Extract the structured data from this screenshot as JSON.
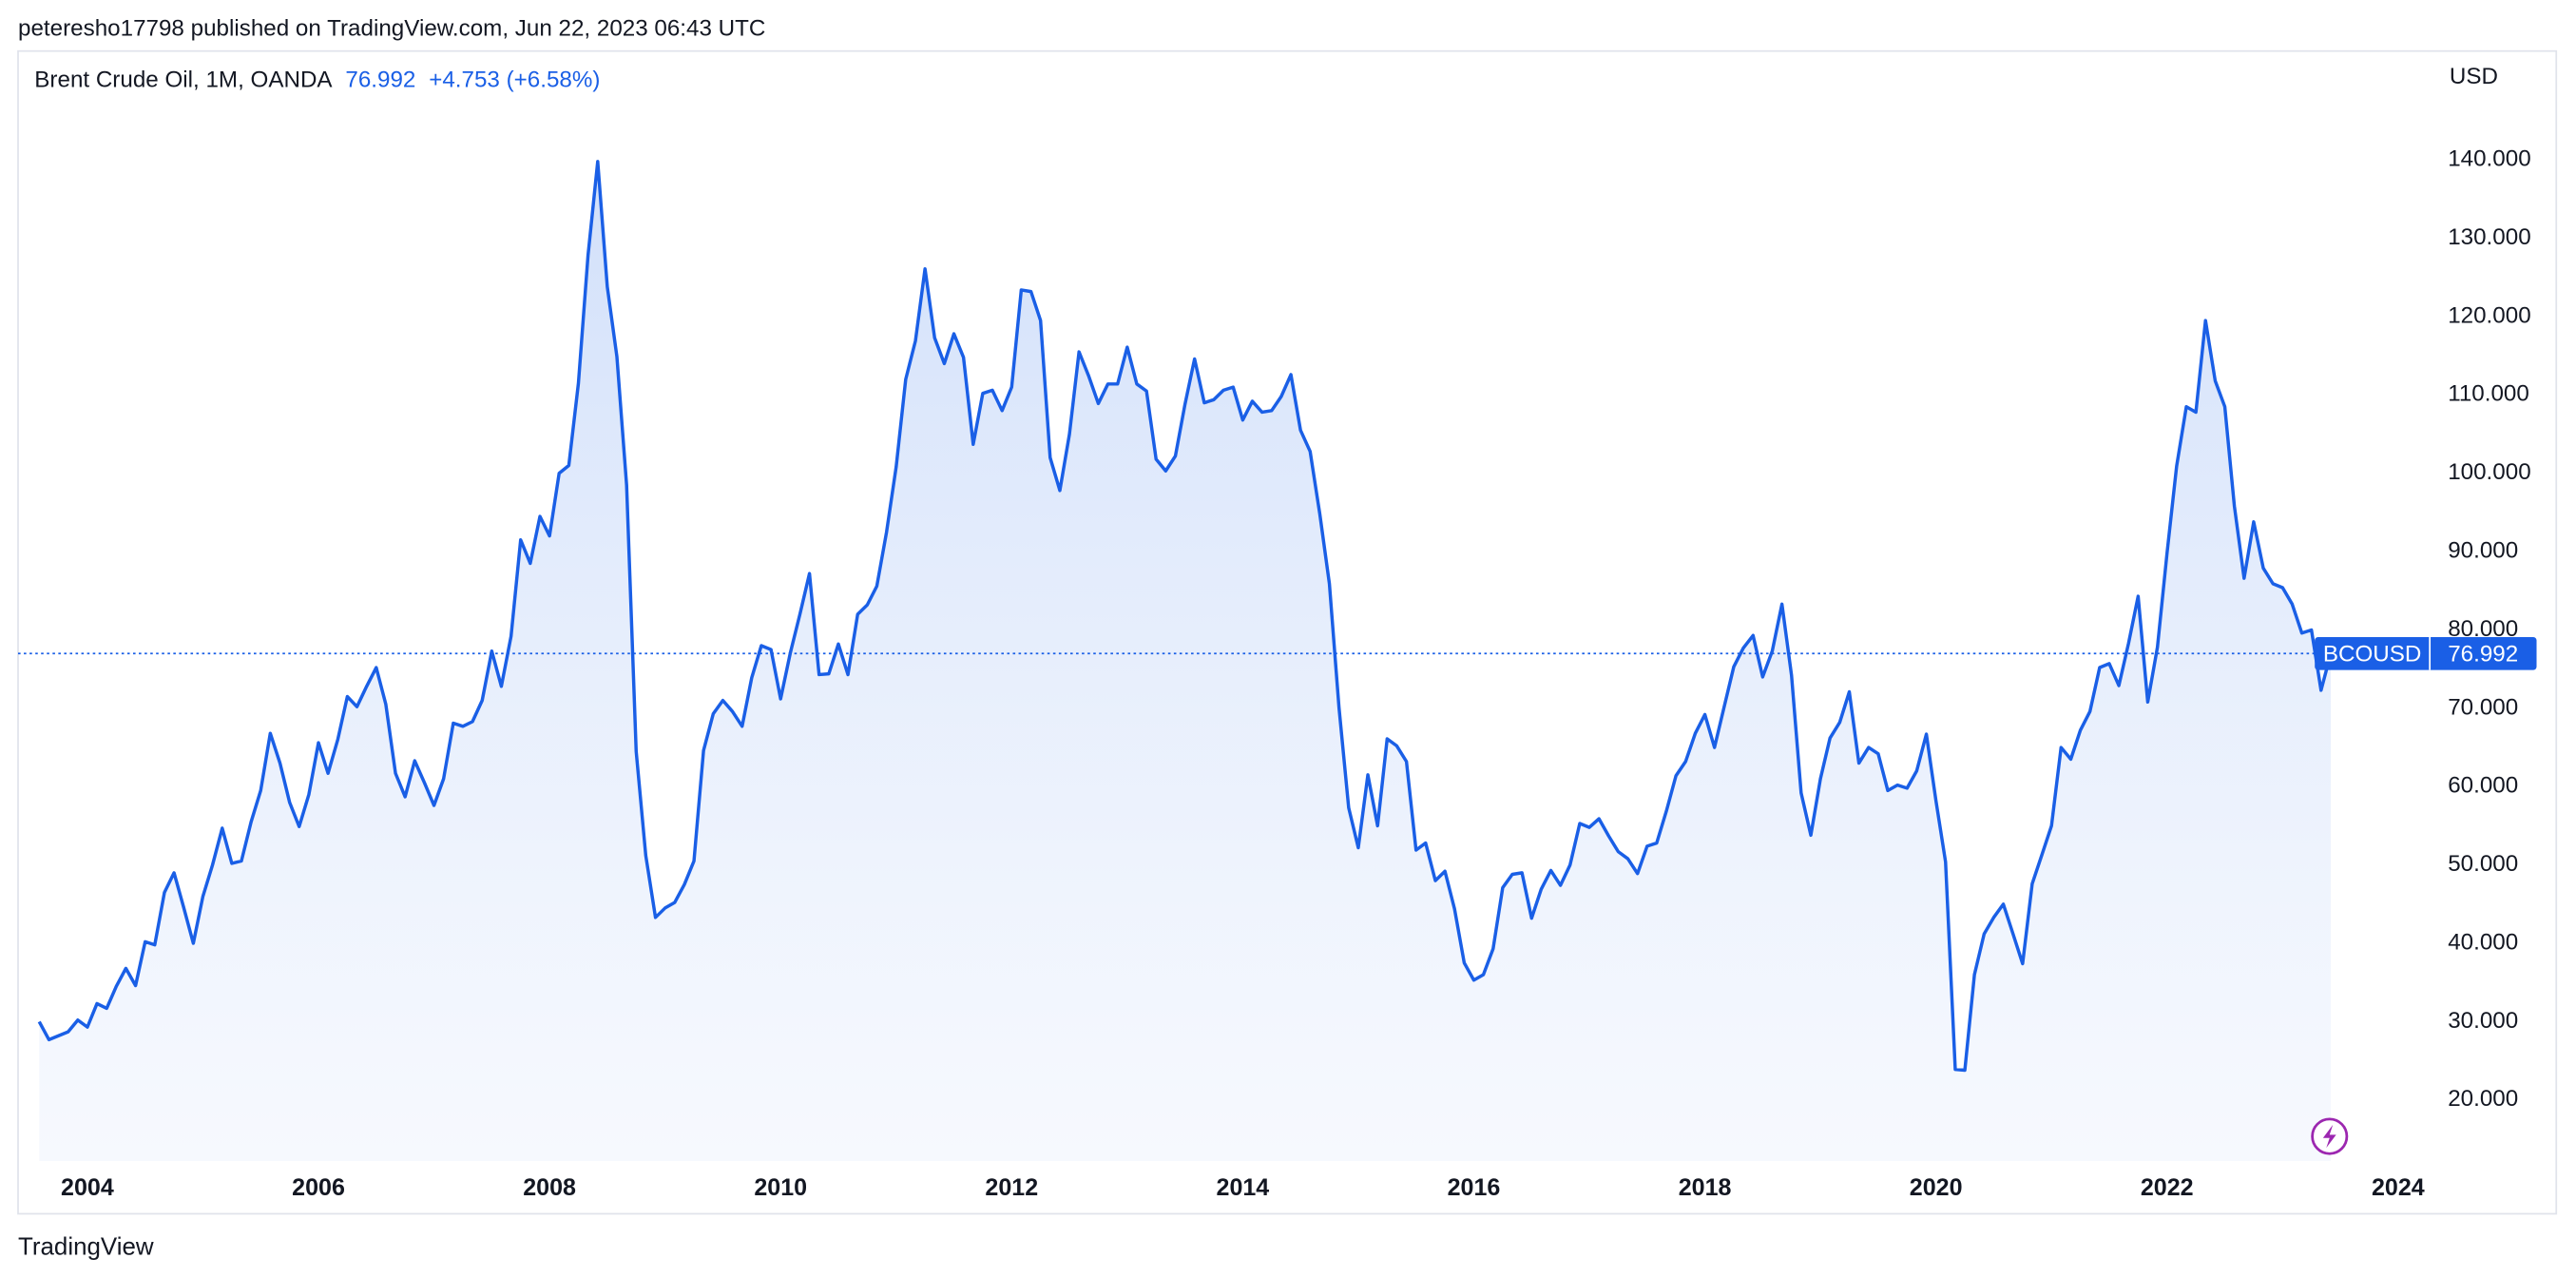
{
  "header": {
    "text": "peteresho17798 published on TradingView.com, Jun 22, 2023 06:43 UTC"
  },
  "footer": {
    "brand": "TradingView"
  },
  "chart_data": {
    "type": "area",
    "title": "Brent Crude Oil, 1M, OANDA",
    "change": "+4.753 (+6.58%)",
    "symbol": "BCOUSD",
    "currency": "USD",
    "color": "#1a5fe6",
    "xlim": [
      2003.4,
      2024.26
    ],
    "xticks": [
      2004,
      2006,
      2008,
      2010,
      2012,
      2014,
      2016,
      2018,
      2020,
      2022,
      2024
    ],
    "ylim": [
      12.2,
      153.9
    ],
    "yticks": [
      {
        "value": 20,
        "label": "20.000"
      },
      {
        "value": 30,
        "label": "30.000"
      },
      {
        "value": 40,
        "label": "40.000"
      },
      {
        "value": 50,
        "label": "50.000"
      },
      {
        "value": 60,
        "label": "60.000"
      },
      {
        "value": 70,
        "label": "70.000"
      },
      {
        "value": 80,
        "label": "80.000"
      },
      {
        "value": 90,
        "label": "90.000"
      },
      {
        "value": 100,
        "label": "100.000"
      },
      {
        "value": 110,
        "label": "110.000"
      },
      {
        "value": 120,
        "label": "120.000"
      },
      {
        "value": 130,
        "label": "130.000"
      },
      {
        "value": 140,
        "label": "140.000"
      }
    ],
    "grid": false,
    "x": [
      2003.583,
      2003.667,
      2003.75,
      2003.833,
      2003.917,
      2004,
      2004.083,
      2004.167,
      2004.25,
      2004.333,
      2004.417,
      2004.5,
      2004.583,
      2004.667,
      2004.75,
      2004.833,
      2004.917,
      2005,
      2005.083,
      2005.167,
      2005.25,
      2005.333,
      2005.417,
      2005.5,
      2005.583,
      2005.667,
      2005.75,
      2005.833,
      2005.917,
      2006,
      2006.083,
      2006.167,
      2006.25,
      2006.333,
      2006.417,
      2006.5,
      2006.583,
      2006.667,
      2006.75,
      2006.833,
      2006.917,
      2007,
      2007.083,
      2007.167,
      2007.25,
      2007.333,
      2007.417,
      2007.5,
      2007.583,
      2007.667,
      2007.75,
      2007.833,
      2007.917,
      2008,
      2008.083,
      2008.167,
      2008.25,
      2008.333,
      2008.417,
      2008.5,
      2008.583,
      2008.667,
      2008.75,
      2008.833,
      2008.917,
      2009,
      2009.083,
      2009.167,
      2009.25,
      2009.333,
      2009.417,
      2009.5,
      2009.583,
      2009.667,
      2009.75,
      2009.833,
      2009.917,
      2010,
      2010.083,
      2010.167,
      2010.25,
      2010.333,
      2010.417,
      2010.5,
      2010.583,
      2010.667,
      2010.75,
      2010.833,
      2010.917,
      2011,
      2011.083,
      2011.167,
      2011.25,
      2011.333,
      2011.417,
      2011.5,
      2011.583,
      2011.667,
      2011.75,
      2011.833,
      2011.917,
      2012,
      2012.083,
      2012.167,
      2012.25,
      2012.333,
      2012.417,
      2012.5,
      2012.583,
      2012.667,
      2012.75,
      2012.833,
      2012.917,
      2013,
      2013.083,
      2013.167,
      2013.25,
      2013.333,
      2013.417,
      2013.5,
      2013.583,
      2013.667,
      2013.75,
      2013.833,
      2013.917,
      2014,
      2014.083,
      2014.167,
      2014.25,
      2014.333,
      2014.417,
      2014.5,
      2014.583,
      2014.667,
      2014.75,
      2014.833,
      2014.917,
      2015,
      2015.083,
      2015.167,
      2015.25,
      2015.333,
      2015.417,
      2015.5,
      2015.583,
      2015.667,
      2015.75,
      2015.833,
      2015.917,
      2016,
      2016.083,
      2016.167,
      2016.25,
      2016.333,
      2016.417,
      2016.5,
      2016.583,
      2016.667,
      2016.75,
      2016.833,
      2016.917,
      2017,
      2017.083,
      2017.167,
      2017.25,
      2017.333,
      2017.417,
      2017.5,
      2017.583,
      2017.667,
      2017.75,
      2017.833,
      2017.917,
      2018,
      2018.083,
      2018.167,
      2018.25,
      2018.333,
      2018.417,
      2018.5,
      2018.583,
      2018.667,
      2018.75,
      2018.833,
      2018.917,
      2019,
      2019.083,
      2019.167,
      2019.25,
      2019.333,
      2019.417,
      2019.5,
      2019.583,
      2019.667,
      2019.75,
      2019.833,
      2019.917,
      2020,
      2020.083,
      2020.167,
      2020.25,
      2020.333,
      2020.417,
      2020.5,
      2020.583,
      2020.667,
      2020.75,
      2020.833,
      2020.917,
      2021,
      2021.083,
      2021.167,
      2021.25,
      2021.333,
      2021.417,
      2021.5,
      2021.583,
      2021.667,
      2021.75,
      2021.833,
      2021.917,
      2022,
      2022.083,
      2022.167,
      2022.25,
      2022.333,
      2022.417,
      2022.5,
      2022.583,
      2022.667,
      2022.75,
      2022.833,
      2022.917,
      2023,
      2023.083,
      2023.167,
      2023.25,
      2023.333,
      2023.417
    ],
    "values": [
      30,
      27.7,
      28.2,
      28.7,
      30.2,
      29.3,
      32.3,
      31.7,
      34.5,
      36.8,
      34.6,
      40.2,
      39.8,
      46.5,
      49.0,
      44.6,
      40.0,
      46.0,
      50.0,
      54.7,
      50.2,
      50.5,
      55.5,
      59.5,
      66.8,
      63.0,
      58.0,
      54.9,
      59.0,
      65.6,
      61.7,
      66.0,
      71.5,
      70.2,
      72.8,
      75.2,
      70.5,
      61.7,
      58.7,
      63.3,
      60.5,
      57.6,
      61.0,
      68.1,
      67.7,
      68.3,
      71.0,
      77.3,
      72.8,
      79.2,
      91.5,
      88.5,
      94.5,
      92.0,
      100.0,
      101.0,
      111.5,
      127.8,
      139.8,
      123.8,
      114.9,
      98.5,
      64.5,
      51.2,
      43.3,
      44.5,
      45.2,
      47.5,
      50.5,
      64.6,
      69.3,
      71.0,
      69.6,
      67.7,
      73.9,
      78.0,
      77.5,
      71.2,
      77.0,
      82.0,
      87.2,
      74.3,
      74.4,
      78.2,
      74.3,
      82.0,
      83.2,
      85.6,
      92.5,
      100.8,
      112.0,
      116.9,
      126.1,
      117.3,
      114.0,
      117.8,
      114.8,
      103.7,
      110.2,
      110.6,
      108.0,
      111.0,
      123.4,
      123.2,
      119.5,
      102.0,
      97.8,
      105.0,
      115.5,
      112.4,
      108.9,
      111.4,
      111.4,
      116.1,
      111.4,
      110.5,
      101.8,
      100.3,
      102.2,
      108.8,
      114.6,
      109.0,
      109.4,
      110.6,
      111.0,
      106.8,
      109.2,
      107.8,
      108.0,
      109.8,
      112.6,
      105.5,
      102.8,
      94.8,
      85.9,
      70.1,
      57.3,
      52.2,
      61.5,
      55.0,
      66.1,
      65.2,
      63.2,
      51.9,
      52.8,
      48.0,
      49.2,
      44.4,
      37.5,
      35.3,
      36.0,
      39.3,
      47.1,
      48.8,
      49.0,
      43.2,
      46.9,
      49.3,
      47.4,
      50.0,
      55.3,
      54.8,
      55.9,
      53.7,
      51.7,
      50.8,
      48.9,
      52.4,
      52.8,
      56.9,
      61.4,
      63.2,
      66.8,
      69.2,
      65.0,
      70.2,
      75.3,
      77.7,
      79.3,
      74.0,
      77.3,
      83.3,
      74.2,
      59.2,
      53.8,
      61.0,
      66.2,
      68.2,
      72.1,
      63.0,
      65.0,
      64.2,
      59.5,
      60.2,
      59.8,
      62.0,
      66.7,
      58.2,
      50.4,
      23.9,
      23.8,
      36.0,
      41.2,
      43.3,
      45.0,
      41.2,
      37.4,
      47.6,
      51.3,
      55.0,
      65.0,
      63.5,
      67.2,
      69.6,
      75.2,
      75.7,
      72.9,
      78.3,
      84.3,
      70.8,
      77.8,
      89.8,
      100.9,
      108.5,
      107.8,
      119.5,
      111.8,
      108.5,
      95.8,
      86.6,
      93.8,
      87.9,
      85.9,
      85.4,
      83.3,
      79.6,
      80.0,
      72.3,
      76.992
    ]
  }
}
